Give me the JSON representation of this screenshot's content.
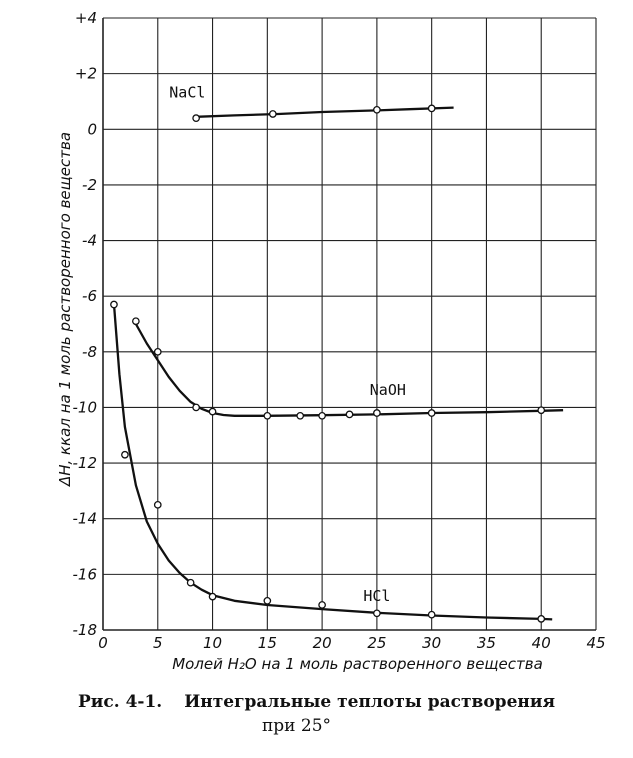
{
  "chart_data": {
    "type": "line",
    "x_ticks": [
      "0",
      "5",
      "10",
      "15",
      "20",
      "25",
      "30",
      "35",
      "40",
      "45"
    ],
    "y_ticks": [
      "+4",
      "+2",
      "0",
      "-2",
      "-4",
      "-6",
      "-8",
      "-10",
      "-12",
      "-14",
      "-16",
      "-18"
    ],
    "xlim": [
      0,
      45
    ],
    "ylim": [
      -18,
      4
    ],
    "grid": true,
    "xlabel": "Молей H₂O на 1 моль растворенного вещества",
    "ylabel": "ΔH, ккал на 1 моль растворенного вещества",
    "series": [
      {
        "name": "NaCl",
        "points": [
          [
            8.5,
            0.4
          ],
          [
            15.5,
            0.55
          ],
          [
            25,
            0.7
          ],
          [
            30,
            0.75
          ]
        ],
        "curve": [
          [
            8.5,
            0.45
          ],
          [
            12,
            0.5
          ],
          [
            16,
            0.55
          ],
          [
            20,
            0.62
          ],
          [
            25,
            0.68
          ],
          [
            28,
            0.72
          ],
          [
            32,
            0.78
          ]
        ]
      },
      {
        "name": "NaOH",
        "points": [
          [
            3,
            -6.9
          ],
          [
            5,
            -8
          ],
          [
            8.5,
            -10
          ],
          [
            10,
            -10.15
          ],
          [
            15,
            -10.3
          ],
          [
            18,
            -10.3
          ],
          [
            20,
            -10.3
          ],
          [
            22.5,
            -10.25
          ],
          [
            25,
            -10.2
          ],
          [
            30,
            -10.2
          ],
          [
            40,
            -10.1
          ]
        ],
        "curve": [
          [
            3,
            -7.0
          ],
          [
            4,
            -7.7
          ],
          [
            5,
            -8.3
          ],
          [
            6,
            -8.9
          ],
          [
            7,
            -9.4
          ],
          [
            8,
            -9.8
          ],
          [
            9,
            -10.05
          ],
          [
            10,
            -10.2
          ],
          [
            11,
            -10.27
          ],
          [
            12,
            -10.3
          ],
          [
            15,
            -10.3
          ],
          [
            20,
            -10.28
          ],
          [
            25,
            -10.25
          ],
          [
            30,
            -10.2
          ],
          [
            35,
            -10.17
          ],
          [
            40,
            -10.12
          ],
          [
            42,
            -10.1
          ]
        ]
      },
      {
        "name": "HCl",
        "points": [
          [
            1,
            -6.3
          ],
          [
            2,
            -11.7
          ],
          [
            5,
            -13.5
          ],
          [
            8,
            -16.3
          ],
          [
            10,
            -16.8
          ],
          [
            15,
            -16.95
          ],
          [
            20,
            -17.1
          ],
          [
            25,
            -17.4
          ],
          [
            30,
            -17.45
          ],
          [
            40,
            -17.6
          ]
        ],
        "curve": [
          [
            1,
            -6.3
          ],
          [
            1.5,
            -8.8
          ],
          [
            2,
            -10.7
          ],
          [
            3,
            -12.8
          ],
          [
            4,
            -14.1
          ],
          [
            5,
            -14.9
          ],
          [
            6,
            -15.5
          ],
          [
            7,
            -15.95
          ],
          [
            8,
            -16.3
          ],
          [
            9,
            -16.55
          ],
          [
            10,
            -16.75
          ],
          [
            12,
            -16.95
          ],
          [
            15,
            -17.1
          ],
          [
            20,
            -17.25
          ],
          [
            25,
            -17.38
          ],
          [
            30,
            -17.48
          ],
          [
            35,
            -17.55
          ],
          [
            40,
            -17.6
          ],
          [
            41,
            -17.62
          ]
        ]
      }
    ]
  },
  "caption": {
    "number": "Рис. 4-1.",
    "title": "Интегральные теплоты растворения",
    "subtitle": "при 25°"
  }
}
